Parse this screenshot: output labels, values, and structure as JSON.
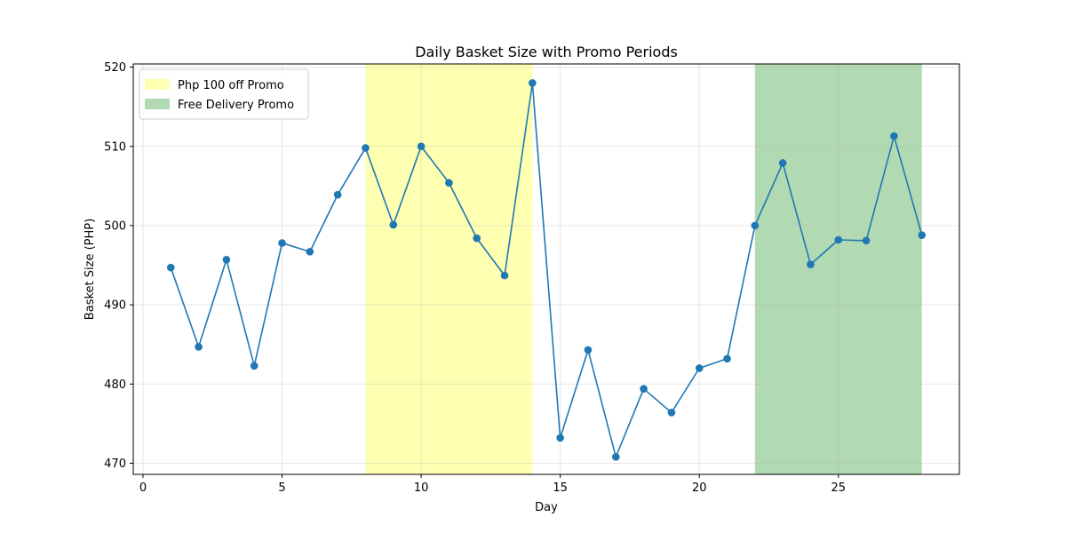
{
  "chart_data": {
    "type": "line",
    "title": "Daily Basket Size with Promo Periods",
    "xlabel": "Day",
    "ylabel": "Basket Size (PHP)",
    "xlim": [
      -0.35,
      29.35
    ],
    "ylim": [
      468.6,
      520.4
    ],
    "xticks": [
      0,
      5,
      10,
      15,
      20,
      25
    ],
    "yticks": [
      470,
      480,
      490,
      500,
      510,
      520
    ],
    "grid": true,
    "legend_position": "top-left",
    "series": [
      {
        "color": "#1f77b4",
        "x": [
          1,
          2,
          3,
          4,
          5,
          6,
          7,
          8,
          9,
          10,
          11,
          12,
          13,
          14,
          15,
          16,
          17,
          18,
          19,
          20,
          21,
          22,
          23,
          24,
          25,
          26,
          27,
          28
        ],
        "y": [
          494.7,
          484.7,
          495.7,
          482.3,
          497.8,
          496.7,
          503.9,
          509.8,
          500.1,
          510.0,
          505.4,
          498.4,
          493.7,
          518.0,
          473.2,
          484.3,
          470.8,
          479.4,
          476.4,
          482.0,
          483.2,
          500.0,
          507.9,
          495.1,
          498.2,
          498.1,
          511.3,
          498.8
        ]
      }
    ],
    "shaded_regions": [
      {
        "label": "Php 100 off Promo",
        "x_start": 8,
        "x_end": 14,
        "color": "#ffff66",
        "opacity": 0.5
      },
      {
        "label": "Free Delivery Promo",
        "x_start": 22,
        "x_end": 28,
        "color": "#2e9a2e",
        "opacity": 0.37
      }
    ]
  }
}
